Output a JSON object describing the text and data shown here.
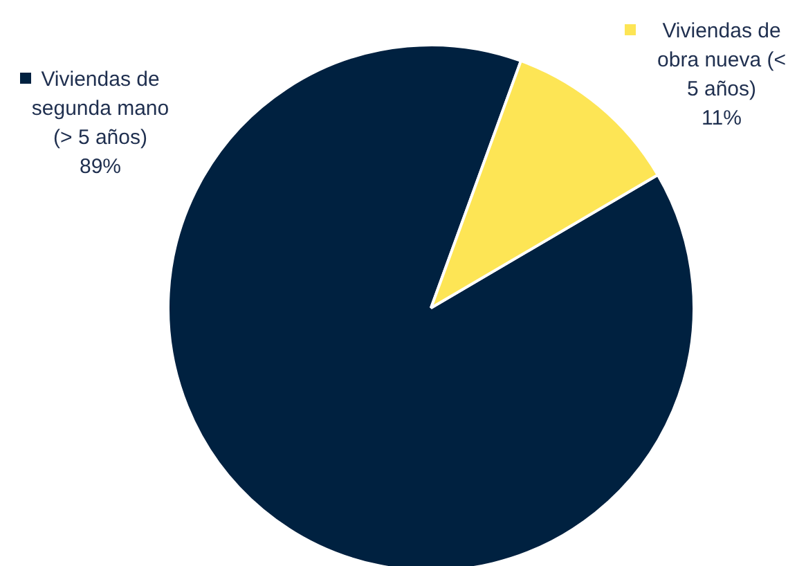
{
  "chart_data": {
    "type": "pie",
    "categories": [
      "Viviendas de segunda mano (> 5 años)",
      "Viviendas de obra nueva (< 5 años)"
    ],
    "values": [
      89,
      11
    ],
    "colors": [
      "#002140",
      "#fde555"
    ],
    "value_labels": [
      "89%",
      "11%"
    ],
    "legend": "top"
  }
}
